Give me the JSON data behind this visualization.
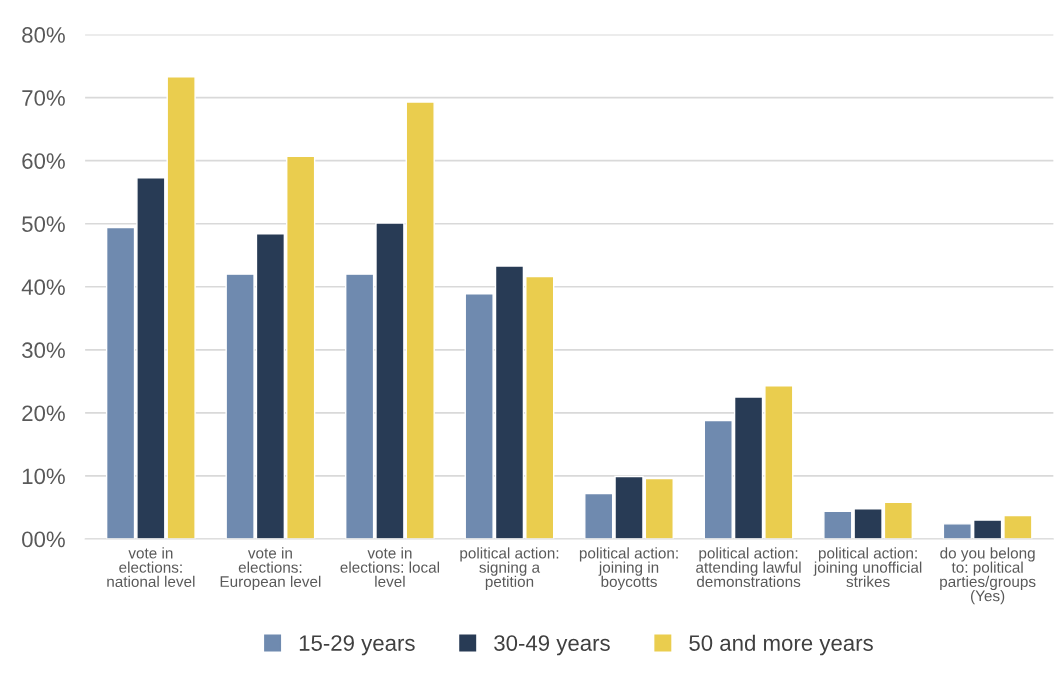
{
  "chart_data": {
    "type": "bar",
    "categories": [
      "vote in\nelections:\nnational level",
      "vote in\nelections:\nEuropean level",
      "vote in\nelections: local\nlevel",
      "political action:\nsigning a\npetition",
      "political action:\njoining in\nboycotts",
      "political action:\nattending lawful\ndemonstrations",
      "political action:\njoining unofficial\nstrikes",
      "do you belong\nto: political\nparties/groups\n(Yes)"
    ],
    "series": [
      {
        "name": "15-29 years",
        "color": "#6f8aaf",
        "values": [
          49.4,
          42.0,
          42.0,
          38.9,
          7.2,
          18.8,
          4.4,
          2.4
        ]
      },
      {
        "name": "30-49 years",
        "color": "#283b55",
        "values": [
          57.3,
          48.4,
          50.1,
          43.3,
          9.9,
          22.5,
          4.8,
          3.0
        ]
      },
      {
        "name": "50 and more years",
        "color": "#eacd4e",
        "values": [
          73.3,
          60.7,
          69.3,
          41.6,
          9.6,
          24.3,
          5.8,
          3.7
        ]
      }
    ],
    "ylim": [
      0,
      80
    ],
    "yticks": [
      {
        "value": 0,
        "label": "00%"
      },
      {
        "value": 10,
        "label": "10%"
      },
      {
        "value": 20,
        "label": "20%"
      },
      {
        "value": 30,
        "label": "30%"
      },
      {
        "value": 40,
        "label": "40%"
      },
      {
        "value": 50,
        "label": "50%"
      },
      {
        "value": 60,
        "label": "60%"
      },
      {
        "value": 70,
        "label": "70%"
      },
      {
        "value": 80,
        "label": "80%"
      }
    ],
    "grid": "y",
    "legend": "bottom"
  }
}
